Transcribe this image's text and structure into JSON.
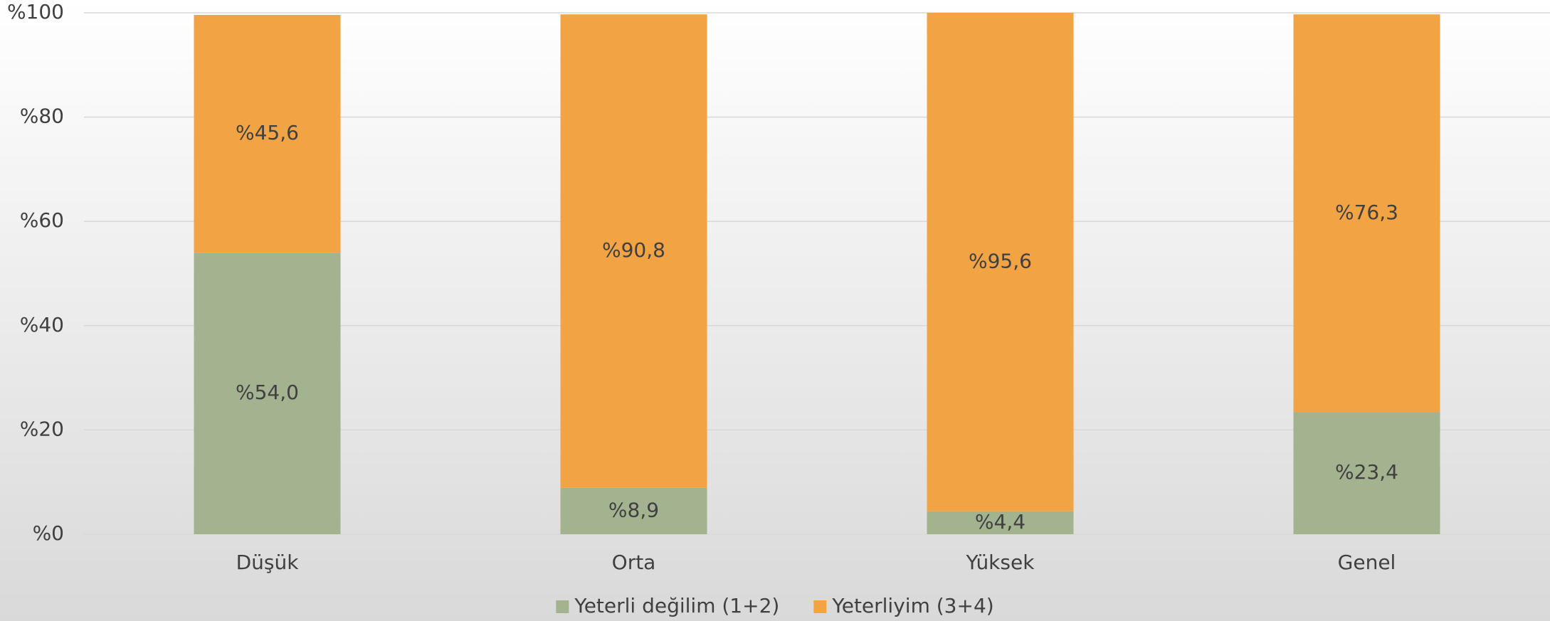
{
  "chart_data": {
    "type": "stacked_bar",
    "categories": [
      "Düşük",
      "Orta",
      "Yüksek",
      "Genel"
    ],
    "series": [
      {
        "name": "Yeterli değilim (1+2)",
        "color": "#a3b38f",
        "values": [
          54.0,
          8.9,
          4.4,
          23.4
        ],
        "value_labels": [
          "%54,0",
          "%8,9",
          "%4,4",
          "%23,4"
        ]
      },
      {
        "name": "Yeterliyim (3+4)",
        "color": "#f2a444",
        "values": [
          45.6,
          90.8,
          95.6,
          76.3
        ],
        "value_labels": [
          "%45,6",
          "%90,8",
          "%95,6",
          "%76,3"
        ]
      }
    ],
    "ylim": [
      0,
      100
    ],
    "yticks": [
      {
        "value": 0,
        "label": "%0"
      },
      {
        "value": 20,
        "label": "%20"
      },
      {
        "value": 40,
        "label": "%40"
      },
      {
        "value": 60,
        "label": "%60"
      },
      {
        "value": 80,
        "label": "%80"
      },
      {
        "value": 100,
        "label": "%100"
      }
    ],
    "grid": true,
    "legend": "bottom"
  }
}
